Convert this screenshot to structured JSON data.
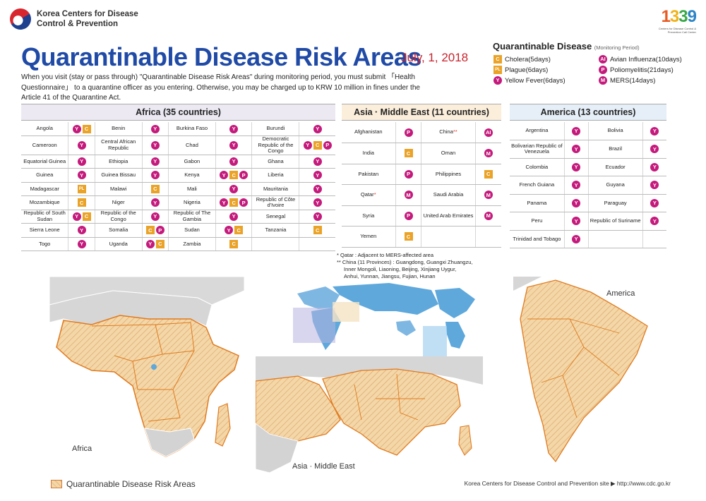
{
  "header": {
    "org_line1": "Korea Centers for Disease",
    "org_line2": "Control & Prevention",
    "logo1339_num": "1339",
    "logo1339_sub": "Centers for Disease Control & Prevention Call Center"
  },
  "title": "Quarantinable Disease Risk Areas",
  "date": "July, 1, 2018",
  "intro": "When you visit (stay or pass through) \"Quarantinable Disease Risk Areas\" during monitoring period, you must submit 「Health Questionnaire」 to a quarantine officer as you entering. Otherwise, you may be charged up to KRW 10 million in fines under the Article 41 of the Quarantine Act.",
  "legend": {
    "title": "Quarantinable Disease",
    "subtitle": "(Monitoring Period)",
    "items": [
      {
        "code": "C",
        "badge": "C",
        "label": "Cholera(5days)"
      },
      {
        "code": "AI",
        "badge": "AI",
        "label": "Avian Influenza(10days)"
      },
      {
        "code": "PL",
        "badge": "PL",
        "label": "Plague(6days)"
      },
      {
        "code": "P",
        "badge": "P",
        "label": "Poliomyelitis(21days)"
      },
      {
        "code": "Y",
        "badge": "Y",
        "label": "Yellow Fever(6days)"
      },
      {
        "code": "M",
        "badge": "M",
        "label": "MERS(14days)"
      }
    ]
  },
  "africa": {
    "heading": "Africa (35 countries)",
    "rows": [
      [
        [
          "Angola",
          [
            "Y",
            "C"
          ]
        ],
        [
          "Benin",
          [
            "Y"
          ]
        ],
        [
          "Burkina Faso",
          [
            "Y"
          ]
        ],
        [
          "Burundi",
          [
            "Y"
          ]
        ]
      ],
      [
        [
          "Cameroon",
          [
            "Y"
          ]
        ],
        [
          "Central African Republic",
          [
            "Y"
          ]
        ],
        [
          "Chad",
          [
            "Y"
          ]
        ],
        [
          "Democratic Republic of the Congo",
          [
            "Y",
            "C",
            "P"
          ]
        ]
      ],
      [
        [
          "Equatorial Guinea",
          [
            "Y"
          ]
        ],
        [
          "Ethiopia",
          [
            "Y"
          ]
        ],
        [
          "Gabon",
          [
            "Y"
          ]
        ],
        [
          "Ghana",
          [
            "Y"
          ]
        ]
      ],
      [
        [
          "Guinea",
          [
            "Y"
          ]
        ],
        [
          "Guinea Bissau",
          [
            "Y"
          ]
        ],
        [
          "Kenya",
          [
            "Y",
            "C",
            "P"
          ]
        ],
        [
          "Liberia",
          [
            "Y"
          ]
        ]
      ],
      [
        [
          "Madagascar",
          [
            "PL"
          ]
        ],
        [
          "Malawi",
          [
            "C"
          ]
        ],
        [
          "Mali",
          [
            "Y"
          ]
        ],
        [
          "Mauritania",
          [
            "Y"
          ]
        ]
      ],
      [
        [
          "Mozambique",
          [
            "C"
          ]
        ],
        [
          "Niger",
          [
            "Y"
          ]
        ],
        [
          "Nigeria",
          [
            "Y",
            "C",
            "P"
          ]
        ],
        [
          "Republic of Côte d'Ivoire",
          [
            "Y"
          ]
        ]
      ],
      [
        [
          "Republic of South Sudan",
          [
            "Y",
            "C"
          ]
        ],
        [
          "Republic of the Congo",
          [
            "Y"
          ]
        ],
        [
          "Republic of The Gambia",
          [
            "Y"
          ]
        ],
        [
          "Senegal",
          [
            "Y"
          ]
        ]
      ],
      [
        [
          "Sierra Leone",
          [
            "Y"
          ]
        ],
        [
          "Somalia",
          [
            "C",
            "P"
          ]
        ],
        [
          "Sudan",
          [
            "Y",
            "C"
          ]
        ],
        [
          "Tanzania",
          [
            "C"
          ]
        ]
      ],
      [
        [
          "Togo",
          [
            "Y"
          ]
        ],
        [
          "Uganda",
          [
            "Y",
            "C"
          ]
        ],
        [
          "Zambia",
          [
            "C"
          ]
        ],
        [
          "",
          []
        ]
      ]
    ]
  },
  "asia": {
    "heading": "Asia · Middle East (11 countries)",
    "rows": [
      [
        [
          "Afghanistan",
          [
            "P"
          ]
        ],
        [
          "China**",
          [
            "AI"
          ]
        ]
      ],
      [
        [
          "India",
          [
            "C"
          ]
        ],
        [
          "Oman",
          [
            "M"
          ]
        ]
      ],
      [
        [
          "Pakistan",
          [
            "P"
          ]
        ],
        [
          "Philippines",
          [
            "C"
          ]
        ]
      ],
      [
        [
          "Qatar*",
          [
            "M"
          ]
        ],
        [
          "Saudi Arabia",
          [
            "M"
          ]
        ]
      ],
      [
        [
          "Syria",
          [
            "P"
          ]
        ],
        [
          "United Arab Emirates",
          [
            "M"
          ]
        ]
      ],
      [
        [
          "Yemen",
          [
            "C"
          ]
        ],
        [
          "",
          []
        ]
      ]
    ]
  },
  "america": {
    "heading": "America (13 countries)",
    "rows": [
      [
        [
          "Argentina",
          [
            "Y"
          ]
        ],
        [
          "Bolivia",
          [
            "Y"
          ]
        ]
      ],
      [
        [
          "Bolivarian Republic of Venezuela",
          [
            "Y"
          ]
        ],
        [
          "Brazil",
          [
            "Y"
          ]
        ]
      ],
      [
        [
          "Colombia",
          [
            "Y"
          ]
        ],
        [
          "Ecuador",
          [
            "Y"
          ]
        ]
      ],
      [
        [
          "French Guiana",
          [
            "Y"
          ]
        ],
        [
          "Guyana",
          [
            "Y"
          ]
        ]
      ],
      [
        [
          "Panama",
          [
            "Y"
          ]
        ],
        [
          "Paraguay",
          [
            "Y"
          ]
        ]
      ],
      [
        [
          "Peru",
          [
            "Y"
          ]
        ],
        [
          "Republic of Suriname",
          [
            "Y"
          ]
        ]
      ],
      [
        [
          "Trinidad and Tobago",
          [
            "Y"
          ]
        ],
        [
          "",
          []
        ]
      ]
    ]
  },
  "notes": [
    "* Qatar : Adjacent to MERS-affected area",
    "** China (11 Provinces) : Guangdong, Guangxi Zhuangzu,",
    "Inner Mongoli, Liaoning, Beijing, Xinjiang Uygur,",
    "Anhui, Yunnan, Jiangsu, Fujian, Hunan"
  ],
  "maps": {
    "africa_label": "Africa",
    "asia_label": "Asia · Middle East",
    "america_label": "America"
  },
  "footer": {
    "legend_label": "Quarantinable Disease Risk Areas",
    "site": "Korea Centers for Disease Control and Prevention site ▶ http://www.cdc.go.kr"
  },
  "colors": {
    "title": "#1f4aa6",
    "date": "#c8232c",
    "africa_head": "#ece9f3",
    "asia_head": "#fbeedb",
    "america_head": "#e6eff7",
    "badge_circle": "#c41a7c",
    "badge_square": "#eaa227",
    "risk_fill": "#f4d7a7",
    "risk_border": "#d47a3b"
  }
}
